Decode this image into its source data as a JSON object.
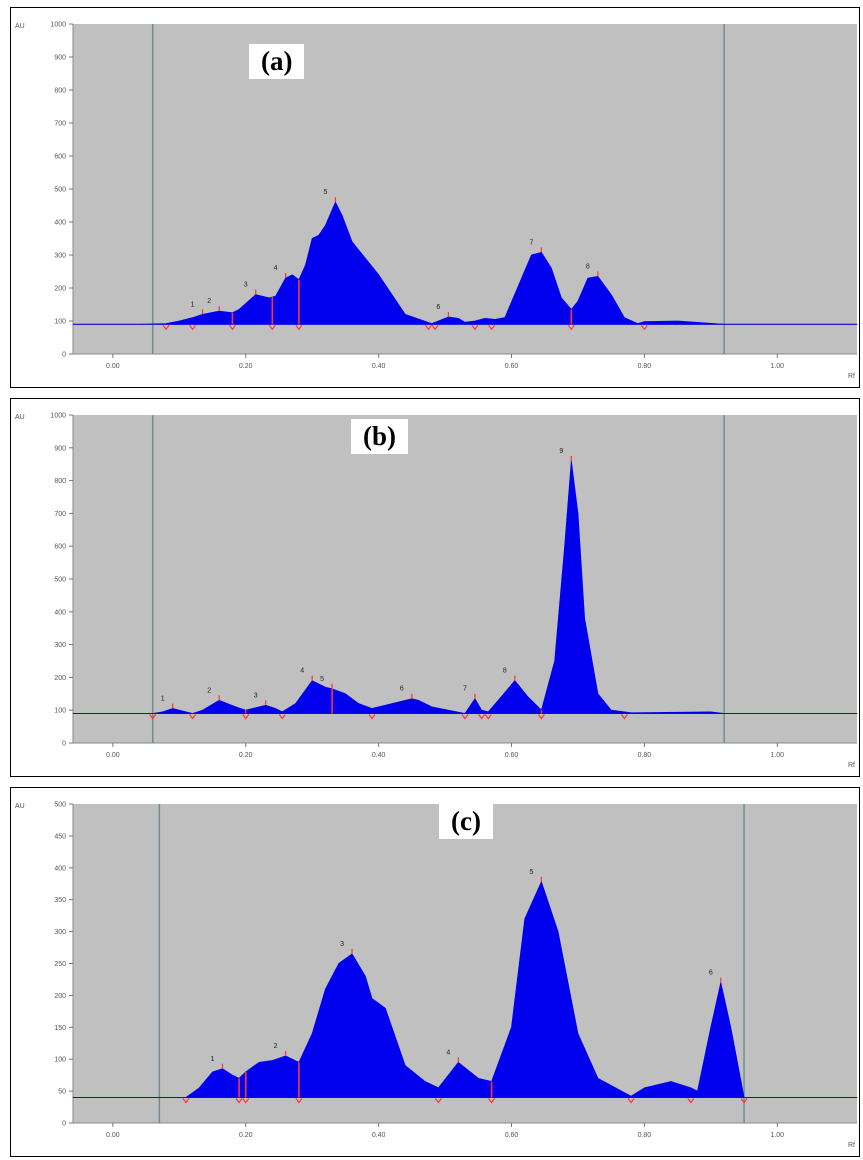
{
  "colors": {
    "plot_bg": "#c0c0c0",
    "peak_fill": "#0000ee",
    "baseline": "#4a4a4a",
    "marker": "#ff3333",
    "vline": "#6f8f8f",
    "axis_text": "#555555"
  },
  "chart_data": [
    {
      "type": "area",
      "panel_label": "(a)",
      "ylabel": "AU",
      "xlabel": "Rf",
      "xlim": [
        -0.06,
        1.12
      ],
      "ylim": [
        0,
        1000
      ],
      "yticks": [
        0,
        100,
        200,
        300,
        400,
        500,
        600,
        700,
        800,
        900,
        1000
      ],
      "ytick_labels": [
        "0",
        "100",
        "200",
        "300",
        "400",
        "500",
        "600",
        "700",
        "800",
        "900",
        "1000"
      ],
      "xticks": [
        0.0,
        0.2,
        0.4,
        0.6,
        0.8,
        1.0
      ],
      "xtick_labels": [
        "0.00",
        "0.20",
        "0.40",
        "0.60",
        "0.80",
        "1.00"
      ],
      "vlines": [
        0.06,
        0.92
      ],
      "baseline_value": 90,
      "trace": {
        "x": [
          -0.06,
          0.0,
          0.04,
          0.08,
          0.1,
          0.12,
          0.135,
          0.16,
          0.18,
          0.19,
          0.215,
          0.235,
          0.245,
          0.26,
          0.27,
          0.28,
          0.29,
          0.3,
          0.31,
          0.32,
          0.335,
          0.345,
          0.36,
          0.38,
          0.4,
          0.42,
          0.44,
          0.48,
          0.49,
          0.505,
          0.52,
          0.53,
          0.545,
          0.56,
          0.575,
          0.59,
          0.63,
          0.645,
          0.66,
          0.675,
          0.69,
          0.7,
          0.715,
          0.73,
          0.75,
          0.77,
          0.79,
          0.8,
          0.85,
          0.92,
          1.12
        ],
        "y": [
          90,
          90,
          90,
          92,
          100,
          110,
          120,
          130,
          125,
          135,
          180,
          170,
          175,
          230,
          240,
          225,
          270,
          350,
          360,
          390,
          460,
          420,
          340,
          290,
          240,
          180,
          120,
          92,
          100,
          112,
          108,
          96,
          100,
          108,
          105,
          110,
          300,
          308,
          260,
          170,
          135,
          160,
          230,
          235,
          180,
          110,
          92,
          98,
          100,
          90,
          90
        ]
      },
      "peaks": [
        {
          "label": "1",
          "rf": 0.135,
          "au": 120
        },
        {
          "label": "2",
          "rf": 0.16,
          "au": 130
        },
        {
          "label": "3",
          "rf": 0.215,
          "au": 180
        },
        {
          "label": "4",
          "rf": 0.26,
          "au": 230
        },
        {
          "label": "5",
          "rf": 0.335,
          "au": 460
        },
        {
          "label": "6",
          "rf": 0.505,
          "au": 112
        },
        {
          "label": "7",
          "rf": 0.645,
          "au": 308
        },
        {
          "label": "8",
          "rf": 0.73,
          "au": 235
        }
      ],
      "bounds": [
        0.08,
        0.12,
        0.18,
        0.24,
        0.28,
        0.475,
        0.485,
        0.545,
        0.57,
        0.69,
        0.8
      ],
      "dividers": [
        0.18,
        0.24,
        0.28,
        0.69
      ]
    },
    {
      "type": "area",
      "panel_label": "(b)",
      "ylabel": "AU",
      "xlabel": "Rf",
      "xlim": [
        -0.06,
        1.12
      ],
      "ylim": [
        0,
        1000
      ],
      "yticks": [
        0,
        100,
        200,
        300,
        400,
        500,
        600,
        700,
        800,
        900,
        1000
      ],
      "ytick_labels": [
        "0",
        "100",
        "200",
        "300",
        "400",
        "500",
        "600",
        "700",
        "800",
        "900",
        "1000"
      ],
      "xticks": [
        0.0,
        0.2,
        0.4,
        0.6,
        0.8,
        1.0
      ],
      "xtick_labels": [
        "0.00",
        "0.20",
        "0.40",
        "0.60",
        "0.80",
        "1.00"
      ],
      "vlines": [
        0.06,
        0.92
      ],
      "baseline_value": 90,
      "trace": {
        "x": [
          -0.06,
          0.0,
          0.06,
          0.075,
          0.09,
          0.11,
          0.12,
          0.135,
          0.16,
          0.185,
          0.2,
          0.23,
          0.245,
          0.255,
          0.275,
          0.3,
          0.32,
          0.33,
          0.35,
          0.37,
          0.39,
          0.42,
          0.45,
          0.46,
          0.48,
          0.53,
          0.545,
          0.555,
          0.565,
          0.58,
          0.605,
          0.625,
          0.645,
          0.665,
          0.68,
          0.69,
          0.7,
          0.71,
          0.73,
          0.75,
          0.78,
          0.9,
          0.92,
          1.12
        ],
        "y": [
          90,
          90,
          90,
          95,
          105,
          95,
          90,
          100,
          130,
          110,
          100,
          115,
          105,
          95,
          120,
          190,
          170,
          165,
          150,
          120,
          105,
          120,
          135,
          130,
          110,
          90,
          135,
          100,
          95,
          130,
          190,
          140,
          100,
          250,
          600,
          860,
          700,
          380,
          150,
          100,
          92,
          95,
          90,
          90
        ]
      },
      "peaks": [
        {
          "label": "1",
          "rf": 0.09,
          "au": 105
        },
        {
          "label": "2",
          "rf": 0.16,
          "au": 130
        },
        {
          "label": "3",
          "rf": 0.23,
          "au": 115
        },
        {
          "label": "4",
          "rf": 0.3,
          "au": 190
        },
        {
          "label": "5",
          "rf": 0.33,
          "au": 165
        },
        {
          "label": "6",
          "rf": 0.45,
          "au": 135
        },
        {
          "label": "7",
          "rf": 0.545,
          "au": 135
        },
        {
          "label": "8",
          "rf": 0.605,
          "au": 190
        },
        {
          "label": "9",
          "rf": 0.69,
          "au": 860
        }
      ],
      "bounds": [
        0.06,
        0.12,
        0.2,
        0.255,
        0.39,
        0.53,
        0.555,
        0.565,
        0.645,
        0.77
      ],
      "dividers": [
        0.2,
        0.33,
        0.645
      ]
    },
    {
      "type": "area",
      "panel_label": "(c)",
      "ylabel": "AU",
      "xlabel": "Rf",
      "xlim": [
        -0.06,
        1.12
      ],
      "ylim": [
        0,
        500
      ],
      "yticks": [
        0,
        50,
        100,
        150,
        200,
        250,
        300,
        350,
        400,
        450,
        500
      ],
      "ytick_labels": [
        "0",
        "50",
        "100",
        "150",
        "200",
        "250",
        "300",
        "350",
        "400",
        "450",
        "500"
      ],
      "xticks": [
        0.0,
        0.2,
        0.4,
        0.6,
        0.8,
        1.0
      ],
      "xtick_labels": [
        "0.00",
        "0.20",
        "0.40",
        "0.60",
        "0.80",
        "1.00"
      ],
      "vlines": [
        0.07,
        0.95
      ],
      "baseline_value": 40,
      "trace": {
        "x": [
          -0.06,
          0.0,
          0.07,
          0.11,
          0.13,
          0.15,
          0.165,
          0.18,
          0.19,
          0.2,
          0.22,
          0.24,
          0.26,
          0.28,
          0.3,
          0.32,
          0.34,
          0.36,
          0.38,
          0.39,
          0.41,
          0.44,
          0.47,
          0.49,
          0.52,
          0.55,
          0.57,
          0.6,
          0.62,
          0.645,
          0.67,
          0.7,
          0.73,
          0.78,
          0.8,
          0.84,
          0.87,
          0.88,
          0.9,
          0.915,
          0.93,
          0.95,
          1.12
        ],
        "y": [
          40,
          40,
          40,
          40,
          55,
          80,
          85,
          75,
          70,
          80,
          95,
          98,
          105,
          95,
          140,
          210,
          250,
          265,
          230,
          195,
          180,
          90,
          65,
          55,
          95,
          70,
          65,
          150,
          320,
          378,
          300,
          140,
          70,
          42,
          55,
          65,
          55,
          50,
          150,
          220,
          150,
          40,
          40
        ]
      },
      "peaks": [
        {
          "label": "1",
          "rf": 0.165,
          "au": 85
        },
        {
          "label": "2",
          "rf": 0.26,
          "au": 105
        },
        {
          "label": "3",
          "rf": 0.36,
          "au": 265
        },
        {
          "label": "4",
          "rf": 0.52,
          "au": 95
        },
        {
          "label": "5",
          "rf": 0.645,
          "au": 378
        },
        {
          "label": "6",
          "rf": 0.915,
          "au": 220
        }
      ],
      "bounds": [
        0.11,
        0.19,
        0.2,
        0.28,
        0.49,
        0.57,
        0.78,
        0.87,
        0.95
      ],
      "dividers": [
        0.19,
        0.2,
        0.28,
        0.57,
        0.95
      ]
    }
  ]
}
